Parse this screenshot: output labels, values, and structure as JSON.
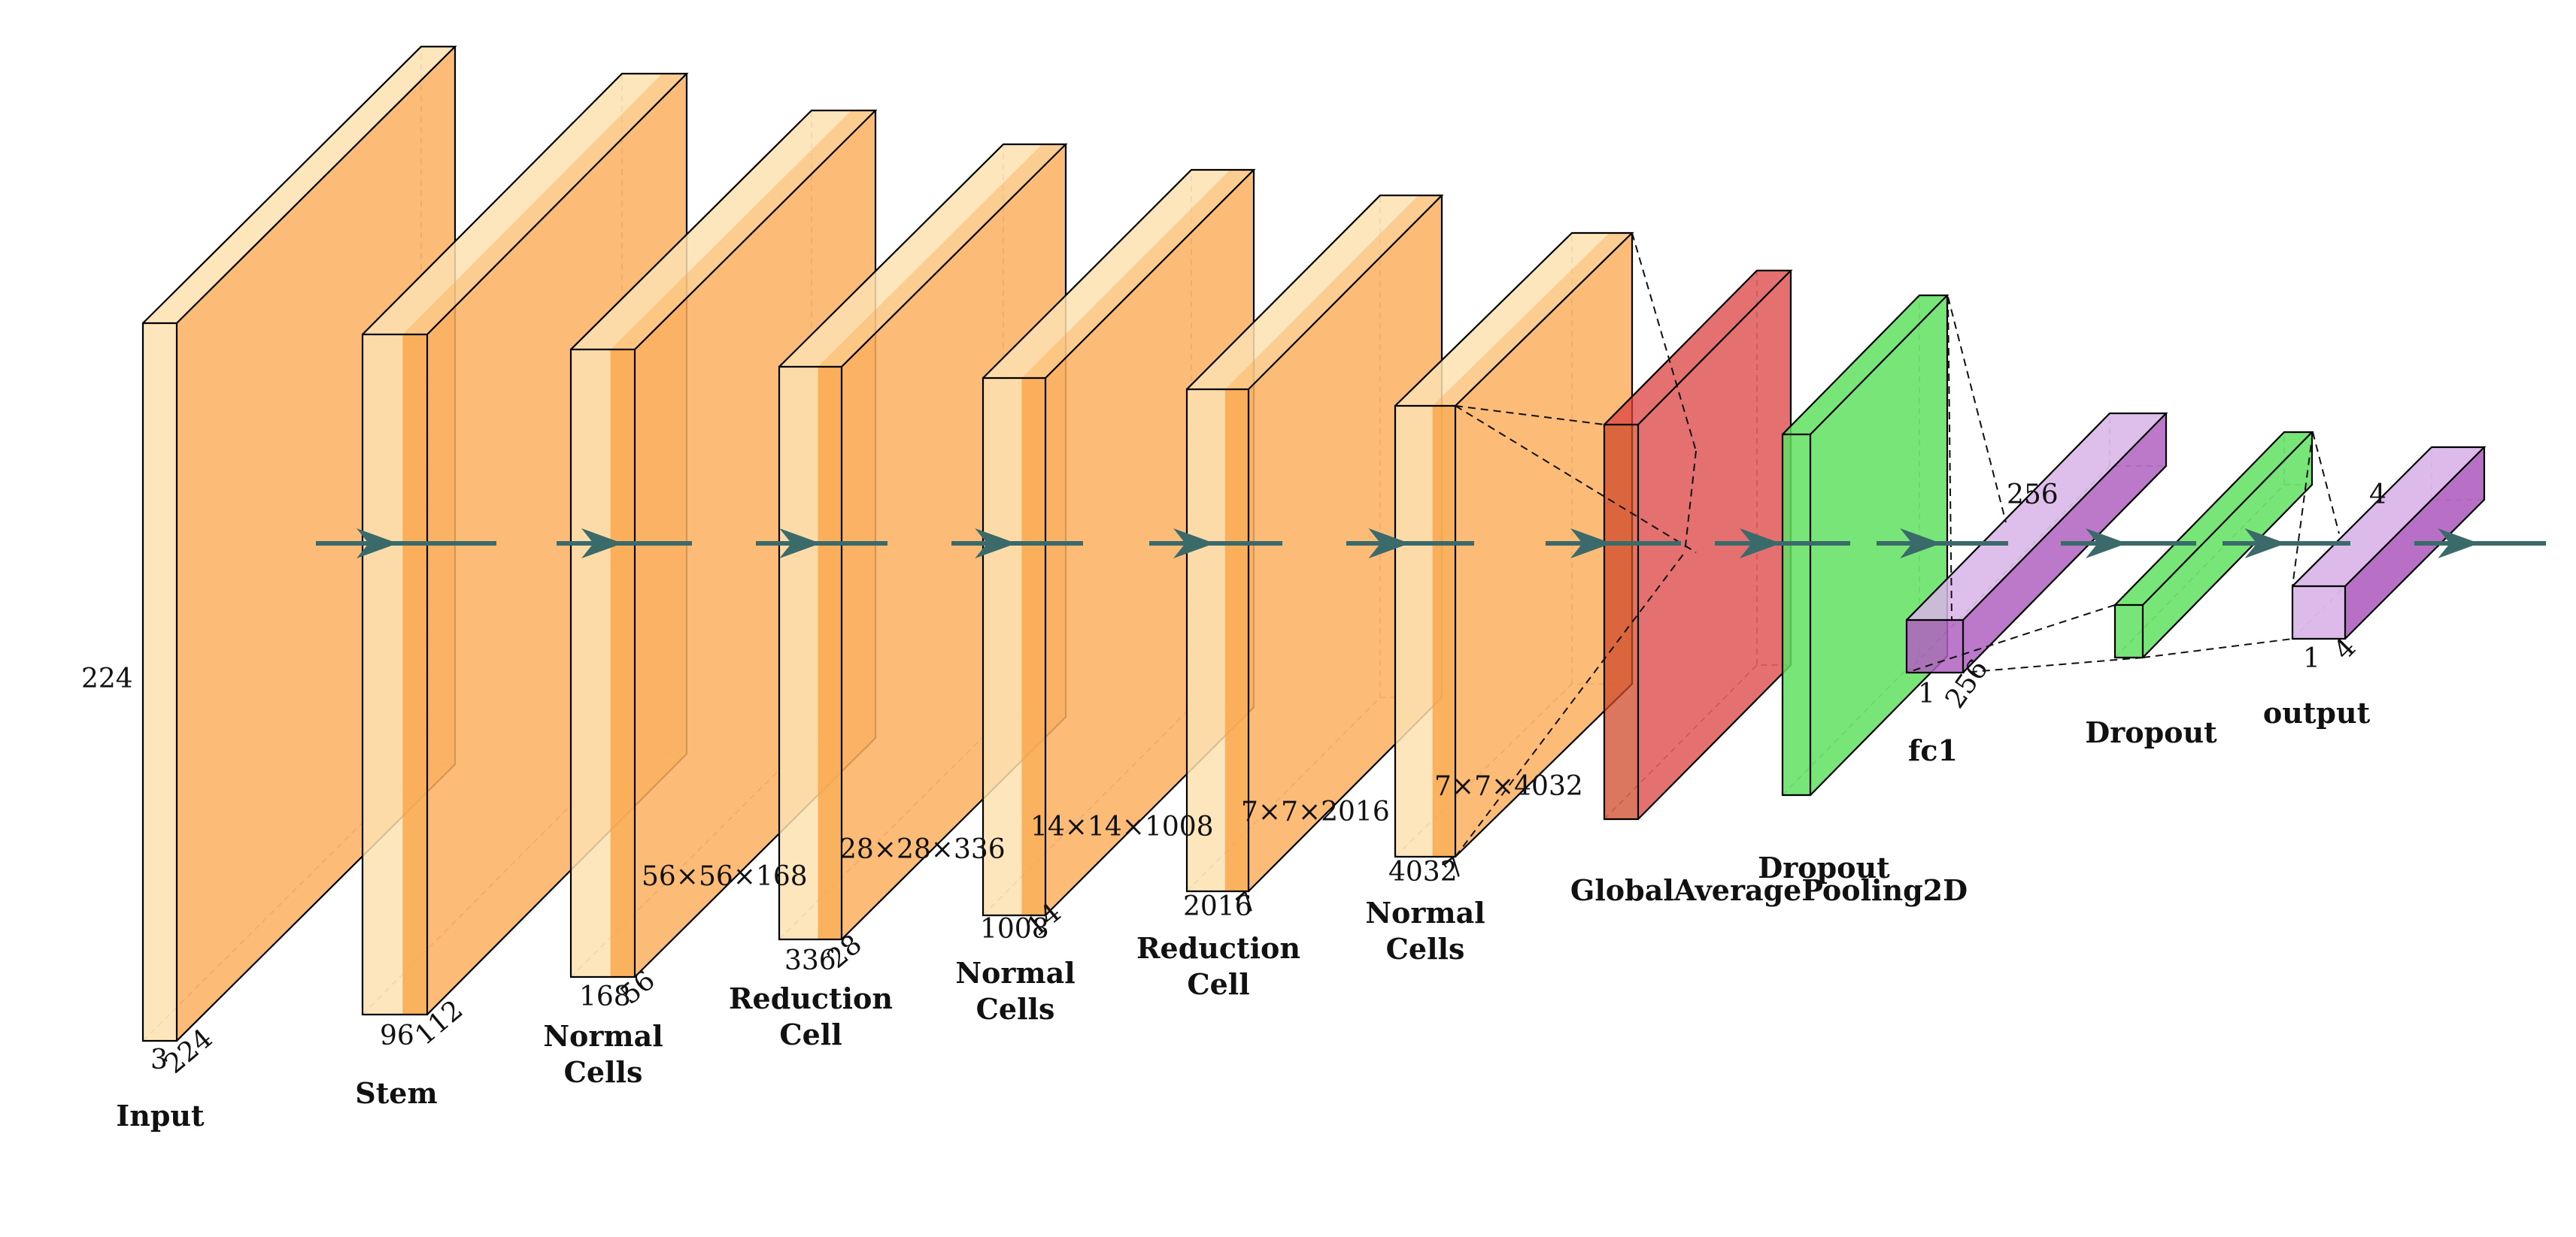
{
  "colors": {
    "conv_front": "#fde0b0",
    "conv_face": "#fbb060",
    "conv_dark": "#f9a040",
    "pool": "#dc4040",
    "pool_front": "#d04a2a",
    "dropout": "#5fe05f",
    "fc": "#b060c0",
    "fc_light": "#d8b4e8",
    "arrow": "#3b6a6a"
  },
  "layers": [
    {
      "id": "input",
      "label": [
        "Input"
      ],
      "dims": {
        "depth": "3",
        "width": "224",
        "height": "224"
      },
      "shape_text": ""
    },
    {
      "id": "stem",
      "label": [
        "Stem"
      ],
      "dims": {
        "depth": "96",
        "width": "112",
        "height": ""
      },
      "shape_text": ""
    },
    {
      "id": "normal1",
      "label": [
        "Normal",
        "Cells"
      ],
      "dims": {
        "depth": "168",
        "width": "56",
        "height": ""
      },
      "shape_text": "56×56×168"
    },
    {
      "id": "reduction1",
      "label": [
        "Reduction",
        "Cell"
      ],
      "dims": {
        "depth": "336",
        "width": "28",
        "height": ""
      },
      "shape_text": "28×28×336"
    },
    {
      "id": "normal2",
      "label": [
        "Normal",
        "Cells"
      ],
      "dims": {
        "depth": "1008",
        "width": "14",
        "height": ""
      },
      "shape_text": "14×14×1008"
    },
    {
      "id": "reduction2",
      "label": [
        "Reduction",
        "Cell"
      ],
      "dims": {
        "depth": "2016",
        "width": "7",
        "height": ""
      },
      "shape_text": "7×7×2016"
    },
    {
      "id": "normal3",
      "label": [
        "Normal",
        "Cells"
      ],
      "dims": {
        "depth": "4032",
        "width": "7",
        "height": ""
      },
      "shape_text": "7×7×4032"
    },
    {
      "id": "gap",
      "label": [
        "GlobalAveragePooling2D"
      ],
      "dims": {},
      "shape_text": ""
    },
    {
      "id": "dropout1",
      "label": [
        "Dropout"
      ],
      "dims": {},
      "shape_text": ""
    },
    {
      "id": "fc1",
      "label": [
        "fc1"
      ],
      "dims": {
        "depth": "1",
        "width": "256",
        "height": "256"
      },
      "shape_text": ""
    },
    {
      "id": "dropout2",
      "label": [
        "Dropout"
      ],
      "dims": {},
      "shape_text": ""
    },
    {
      "id": "output",
      "label": [
        "output"
      ],
      "dims": {
        "depth": "1",
        "width": "4",
        "height": "4"
      },
      "shape_text": ""
    }
  ],
  "arrow_count": 12
}
